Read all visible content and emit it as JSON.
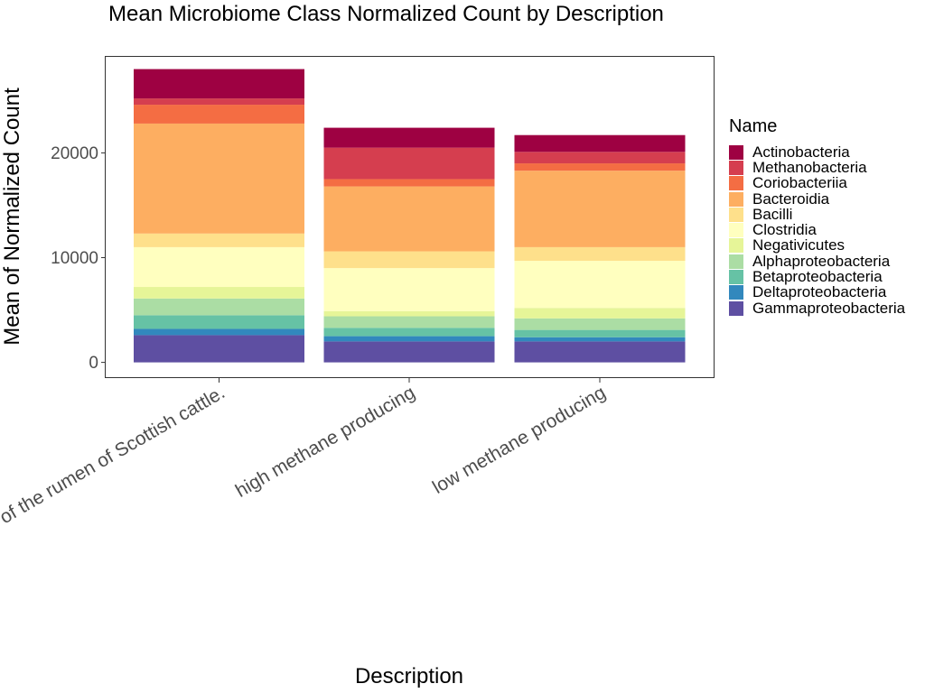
{
  "chart_data": {
    "type": "bar",
    "stacked": true,
    "title": "Mean Microbiome Class Normalized Count by Description",
    "xlabel": "Description",
    "ylabel": "Mean of Normalized Count",
    "categories": [
      "of the rumen of Scottish cattle.",
      "high methane producing",
      "low methane producing"
    ],
    "ylim": [
      0,
      29000
    ],
    "yticks": [
      0,
      10000,
      20000
    ],
    "grid": false,
    "legend": {
      "title": "Name",
      "position": "right"
    },
    "series": [
      {
        "name": "Actinobacteria",
        "color": "#9E0142",
        "values": [
          2800,
          1900,
          1600
        ]
      },
      {
        "name": "Methanobacteria",
        "color": "#D53E4F",
        "values": [
          600,
          3000,
          1100
        ]
      },
      {
        "name": "Coriobacteriia",
        "color": "#F46D43",
        "values": [
          1800,
          700,
          700
        ]
      },
      {
        "name": "Bacteroidia",
        "color": "#FDAE61",
        "values": [
          10500,
          6200,
          7300
        ]
      },
      {
        "name": "Bacilli",
        "color": "#FEE08B",
        "values": [
          1300,
          1600,
          1300
        ]
      },
      {
        "name": "Clostridia",
        "color": "#FFFFBF",
        "values": [
          3800,
          4100,
          4500
        ]
      },
      {
        "name": "Negativicutes",
        "color": "#E6F598",
        "values": [
          1100,
          500,
          1000
        ]
      },
      {
        "name": "Alphaproteobacteria",
        "color": "#ABDDA4",
        "values": [
          1600,
          1100,
          1100
        ]
      },
      {
        "name": "Betaproteobacteria",
        "color": "#66C2A5",
        "values": [
          1300,
          800,
          700
        ]
      },
      {
        "name": "Deltaproteobacteria",
        "color": "#3288BD",
        "values": [
          600,
          500,
          400
        ]
      },
      {
        "name": "Gammaproteobacteria",
        "color": "#5E4FA2",
        "values": [
          2600,
          2000,
          2000
        ]
      }
    ]
  }
}
